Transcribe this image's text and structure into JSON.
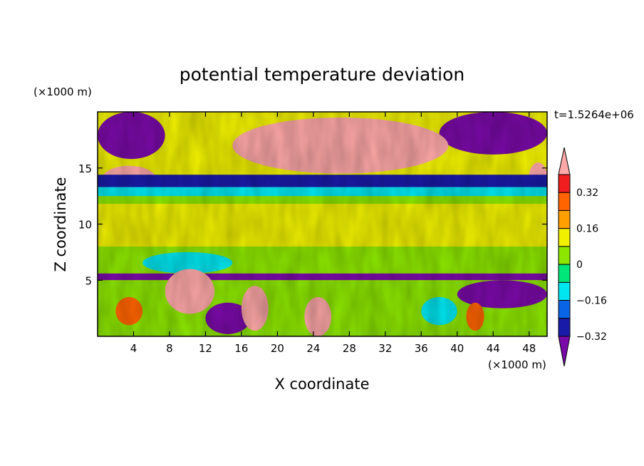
{
  "chart_data": {
    "type": "heatmap",
    "title": "potential temperature deviation",
    "time_label": "t=1.5264e+06",
    "xlabel": "X coordinate",
    "ylabel": "Z coordinate",
    "x_unit": "(×1000 m)",
    "y_unit": "(×1000 m)",
    "xlim": [
      0,
      50
    ],
    "ylim": [
      0,
      20
    ],
    "x_ticks": [
      4,
      8,
      12,
      16,
      20,
      24,
      28,
      32,
      36,
      40,
      44,
      48
    ],
    "y_ticks": [
      5,
      10,
      15
    ],
    "colorbar": {
      "labels": [
        "0.32",
        "0.16",
        "0",
        "−0.16",
        "−0.32"
      ],
      "label_values": [
        0.32,
        0.16,
        0,
        -0.16,
        -0.32
      ],
      "levels": [
        -0.4,
        -0.32,
        -0.24,
        -0.16,
        -0.08,
        0,
        0.08,
        0.16,
        0.24,
        0.32,
        0.4
      ],
      "colors": [
        "#7a0aa8",
        "#1a1aa8",
        "#0a64e6",
        "#00e6f0",
        "#00e678",
        "#8ce600",
        "#f0f000",
        "#ffa000",
        "#ff6400",
        "#f01e1e",
        "#ffa8a8"
      ],
      "extend": "both"
    },
    "regions": [
      {
        "level": 0.08,
        "note": "background"
      },
      {
        "level": -0.4,
        "x": [
          0,
          7.5
        ],
        "z": [
          15.8,
          20
        ]
      },
      {
        "level": -0.4,
        "x": [
          38,
          50
        ],
        "z": [
          16.2,
          20
        ]
      },
      {
        "level": 0.4,
        "x": [
          15,
          39
        ],
        "z": [
          14.5,
          19.5
        ]
      },
      {
        "level": 0.4,
        "x": [
          0.5,
          6.5
        ],
        "z": [
          12.8,
          15.2
        ]
      },
      {
        "level": 0.4,
        "x": [
          48,
          50
        ],
        "z": [
          13,
          15.5
        ]
      },
      {
        "level": -0.32,
        "x": [
          0,
          50
        ],
        "z": [
          13,
          14.4
        ]
      },
      {
        "level": -0.16,
        "x": [
          0,
          50
        ],
        "z": [
          12.3,
          13.3
        ]
      },
      {
        "level": 0,
        "x": [
          0,
          50
        ],
        "z": [
          11.8,
          12.5
        ]
      },
      {
        "level": 0,
        "x": [
          0,
          50
        ],
        "z": [
          5.5,
          8
        ]
      },
      {
        "level": -0.4,
        "x": [
          0,
          50
        ],
        "z": [
          5,
          5.6
        ]
      },
      {
        "level": -0.16,
        "x": [
          5,
          15
        ],
        "z": [
          5.6,
          7.5
        ]
      },
      {
        "level": 0,
        "x": [
          0,
          50
        ],
        "z": [
          0,
          5
        ]
      },
      {
        "level": -0.4,
        "x": [
          12,
          17
        ],
        "z": [
          0.2,
          3
        ]
      },
      {
        "level": -0.4,
        "x": [
          40,
          50
        ],
        "z": [
          2.5,
          5
        ]
      },
      {
        "level": -0.16,
        "x": [
          36,
          40
        ],
        "z": [
          1,
          3.5
        ]
      },
      {
        "level": 0.4,
        "x": [
          7.5,
          13
        ],
        "z": [
          2,
          6
        ]
      },
      {
        "level": 0.4,
        "x": [
          16,
          19
        ],
        "z": [
          0.5,
          4.5
        ]
      },
      {
        "level": 0.4,
        "x": [
          23,
          26
        ],
        "z": [
          0,
          3.5
        ]
      },
      {
        "level": 0.24,
        "x": [
          2,
          5
        ],
        "z": [
          1,
          3.5
        ]
      },
      {
        "level": 0.24,
        "x": [
          41,
          43
        ],
        "z": [
          0.5,
          3
        ]
      }
    ]
  }
}
